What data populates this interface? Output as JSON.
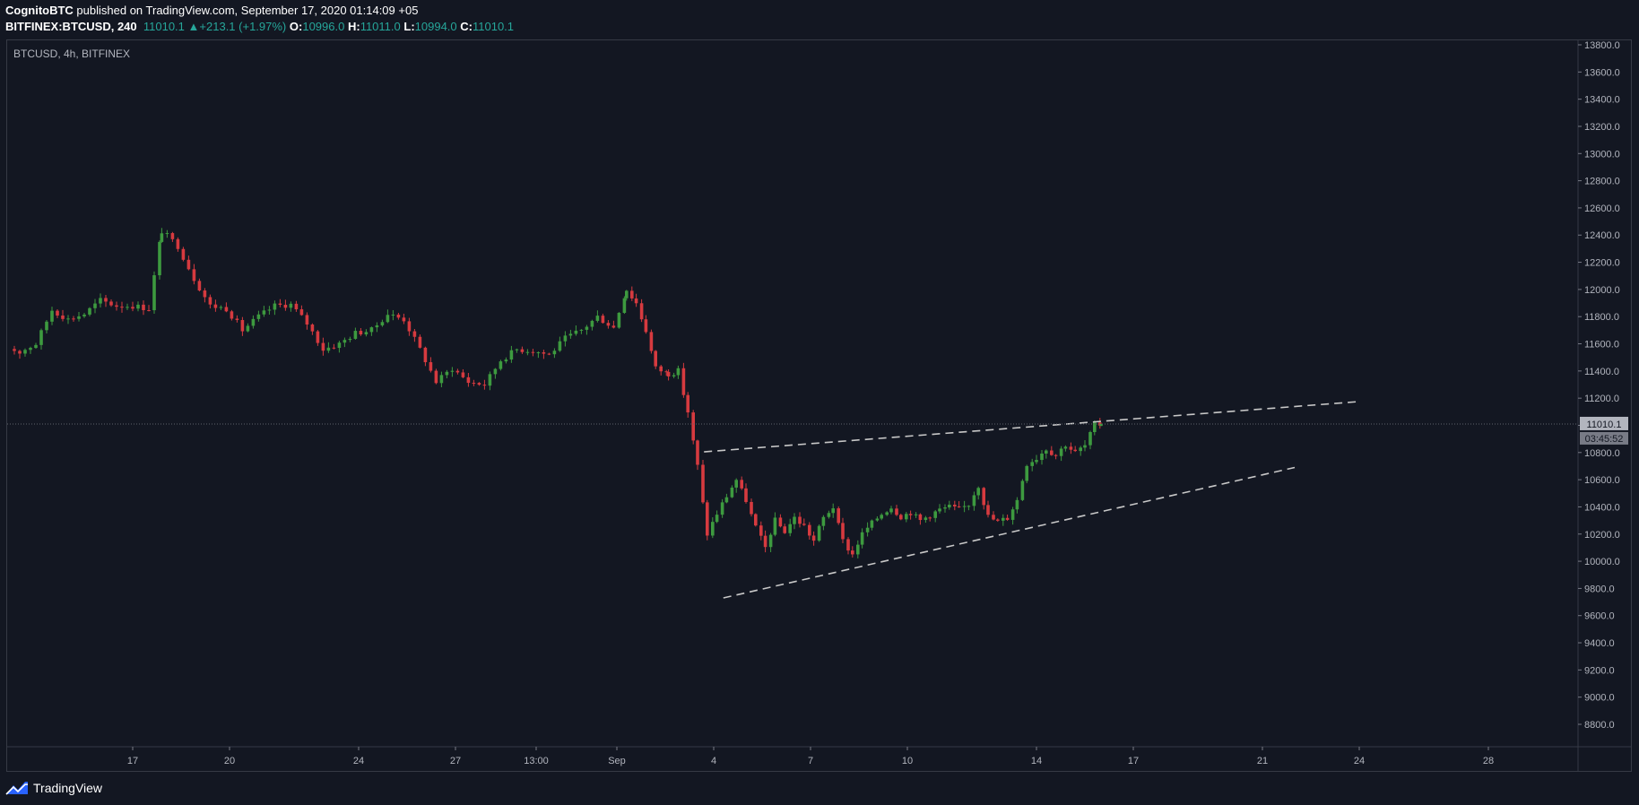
{
  "header": {
    "author": "CognitoBTC",
    "published_text": " published on TradingView.com, September 17, 2020 01:14:09 +05",
    "symbol": "BITFINEX:BTCUSD, 240",
    "last": "11010.1",
    "change_arrow": "▲",
    "change": "+213.1 (+1.97%)",
    "o_label": "O:",
    "o_value": "10996.0",
    "h_label": "H:",
    "h_value": "11011.0",
    "l_label": "L:",
    "l_value": "10994.0",
    "c_label": "C:",
    "c_value": "11010.1"
  },
  "footer": {
    "brand": "TradingView",
    "logo_icon": "tradingview-logo-icon"
  },
  "colors": {
    "background": "#131722",
    "up": "#26a69a",
    "candle_up": "#3d9a3f",
    "candle_down": "#d63a3f",
    "grid_border": "#363a45",
    "axis_text": "#b2b5be",
    "trendline": "#c8c8c8"
  },
  "chart_data": {
    "type": "candlestick",
    "title": "BTCUSD, 4h, BITFINEX",
    "ylim": [
      8650,
      13850
    ],
    "y_ticks": [
      "13800.0",
      "13600.0",
      "13400.0",
      "13200.0",
      "13000.0",
      "12800.0",
      "12600.0",
      "12400.0",
      "12200.0",
      "12000.0",
      "11800.0",
      "11600.0",
      "11400.0",
      "11200.0",
      "11000.0",
      "10800.0",
      "10600.0",
      "10400.0",
      "10200.0",
      "10000.0",
      "9800.0",
      "9600.0",
      "9400.0",
      "9200.0",
      "9000.0",
      "8800.0"
    ],
    "x_ticks": [
      {
        "label": "17",
        "day": 17
      },
      {
        "label": "20",
        "day": 20
      },
      {
        "label": "24",
        "day": 24
      },
      {
        "label": "27",
        "day": 27
      },
      {
        "label": "13:00",
        "day": 29.5
      },
      {
        "label": "Sep",
        "day": 32
      },
      {
        "label": "4",
        "day": 35
      },
      {
        "label": "7",
        "day": 38
      },
      {
        "label": "10",
        "day": 41
      },
      {
        "label": "14",
        "day": 45
      },
      {
        "label": "17",
        "day": 48
      },
      {
        "label": "21",
        "day": 52
      },
      {
        "label": "24",
        "day": 55
      },
      {
        "label": "28",
        "day": 59
      }
    ],
    "x_axis_note": "day index counted from Aug 1, 2020 (Sep 1 = 32)",
    "last_price": {
      "value": 11010.1,
      "label": "11010.1",
      "countdown": "03:45:52"
    },
    "trendlines": [
      {
        "from": {
          "day": 34.7,
          "price": 10805
        },
        "to": {
          "day": 55.0,
          "price": 11175
        }
      },
      {
        "from": {
          "day": 35.3,
          "price": 9730
        },
        "to": {
          "day": 53.0,
          "price": 10690
        }
      }
    ],
    "anchors": [
      [
        13.0,
        11580
      ],
      [
        13.5,
        11540
      ],
      [
        14.0,
        11600
      ],
      [
        14.5,
        11850
      ],
      [
        15.0,
        11780
      ],
      [
        15.5,
        11820
      ],
      [
        16.0,
        11920
      ],
      [
        16.5,
        11880
      ],
      [
        17.0,
        11880
      ],
      [
        17.5,
        11860
      ],
      [
        17.9,
        12430
      ],
      [
        18.4,
        12320
      ],
      [
        18.9,
        12080
      ],
      [
        19.4,
        11880
      ],
      [
        19.9,
        11860
      ],
      [
        20.4,
        11700
      ],
      [
        20.9,
        11800
      ],
      [
        21.4,
        11880
      ],
      [
        21.9,
        11890
      ],
      [
        22.4,
        11750
      ],
      [
        22.9,
        11560
      ],
      [
        23.4,
        11600
      ],
      [
        23.9,
        11680
      ],
      [
        24.4,
        11700
      ],
      [
        24.9,
        11820
      ],
      [
        25.4,
        11780
      ],
      [
        25.9,
        11560
      ],
      [
        26.4,
        11320
      ],
      [
        26.9,
        11420
      ],
      [
        27.4,
        11320
      ],
      [
        27.9,
        11300
      ],
      [
        28.4,
        11480
      ],
      [
        28.9,
        11560
      ],
      [
        29.4,
        11550
      ],
      [
        29.9,
        11520
      ],
      [
        30.4,
        11640
      ],
      [
        30.9,
        11700
      ],
      [
        31.4,
        11800
      ],
      [
        31.9,
        11720
      ],
      [
        32.3,
        12000
      ],
      [
        32.6,
        11900
      ],
      [
        32.9,
        11700
      ],
      [
        33.2,
        11420
      ],
      [
        33.6,
        11380
      ],
      [
        33.9,
        11400
      ],
      [
        34.2,
        11100
      ],
      [
        34.5,
        10700
      ],
      [
        34.8,
        10200
      ],
      [
        35.1,
        10350
      ],
      [
        35.4,
        10480
      ],
      [
        35.7,
        10600
      ],
      [
        36.0,
        10450
      ],
      [
        36.3,
        10250
      ],
      [
        36.6,
        10100
      ],
      [
        36.9,
        10300
      ],
      [
        37.2,
        10220
      ],
      [
        37.5,
        10320
      ],
      [
        37.8,
        10260
      ],
      [
        38.1,
        10150
      ],
      [
        38.4,
        10320
      ],
      [
        38.7,
        10400
      ],
      [
        39.0,
        10150
      ],
      [
        39.3,
        10050
      ],
      [
        39.6,
        10200
      ],
      [
        39.9,
        10280
      ],
      [
        40.2,
        10350
      ],
      [
        40.5,
        10400
      ],
      [
        40.8,
        10330
      ],
      [
        41.1,
        10360
      ],
      [
        41.4,
        10300
      ],
      [
        41.7,
        10340
      ],
      [
        42.0,
        10380
      ],
      [
        42.3,
        10400
      ],
      [
        42.6,
        10380
      ],
      [
        42.9,
        10420
      ],
      [
        43.2,
        10560
      ],
      [
        43.5,
        10330
      ],
      [
        43.8,
        10290
      ],
      [
        44.1,
        10320
      ],
      [
        44.4,
        10450
      ],
      [
        44.7,
        10720
      ],
      [
        45.0,
        10760
      ],
      [
        45.3,
        10830
      ],
      [
        45.6,
        10780
      ],
      [
        45.9,
        10860
      ],
      [
        46.2,
        10800
      ],
      [
        46.5,
        10850
      ],
      [
        46.8,
        11000
      ],
      [
        47.0,
        11010
      ]
    ]
  }
}
